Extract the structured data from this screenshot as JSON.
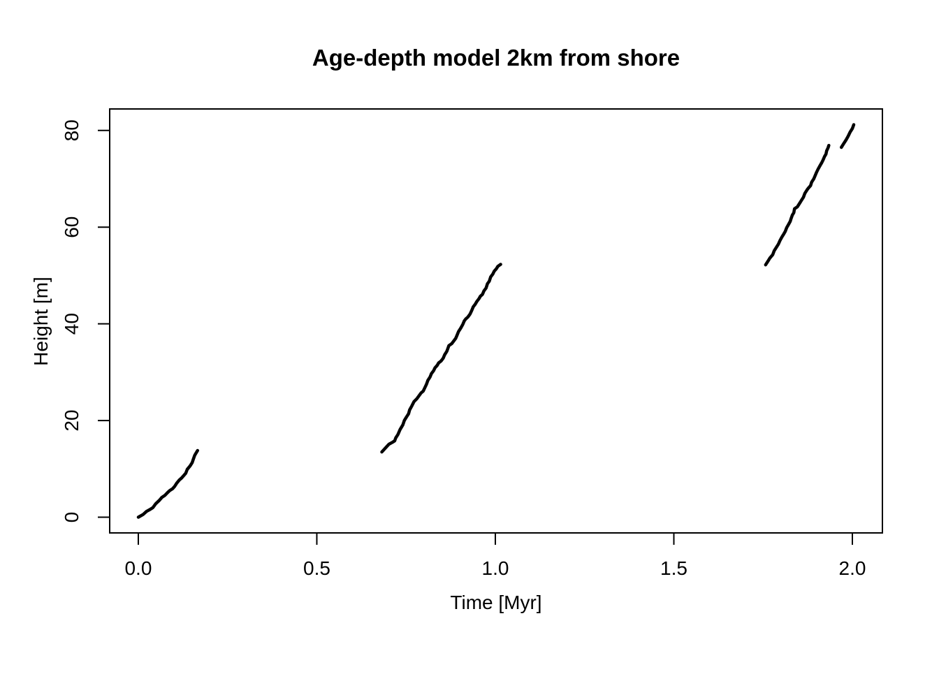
{
  "chart_data": {
    "type": "line",
    "title": "Age-depth model 2km from shore",
    "xlabel": "Time [Myr]",
    "ylabel": "Height [m]",
    "xlim": [
      0,
      2.004
    ],
    "ylim": [
      0,
      81.2
    ],
    "x_ticks": [
      0.0,
      0.5,
      1.0,
      1.5,
      2.0
    ],
    "x_tick_labels": [
      "0.0",
      "0.5",
      "1.0",
      "1.5",
      "2.0"
    ],
    "y_ticks": [
      0,
      20,
      40,
      60,
      80
    ],
    "y_tick_labels": [
      "0",
      "20",
      "40",
      "60",
      "80"
    ],
    "grid": false,
    "legend": "none",
    "axis_expansion": 0.04,
    "colors": {
      "line": "#000000",
      "axis": "#000000",
      "text": "#000000",
      "background": "#ffffff"
    },
    "series": [
      {
        "name": "segment-1",
        "points": [
          [
            0.0,
            0.0
          ],
          [
            0.014,
            0.6
          ],
          [
            0.023,
            1.2
          ],
          [
            0.033,
            1.6
          ],
          [
            0.041,
            2.0
          ],
          [
            0.049,
            2.8
          ],
          [
            0.059,
            3.5
          ],
          [
            0.066,
            4.1
          ],
          [
            0.074,
            4.5
          ],
          [
            0.082,
            5.1
          ],
          [
            0.088,
            5.5
          ],
          [
            0.096,
            5.9
          ],
          [
            0.102,
            6.4
          ],
          [
            0.108,
            7.1
          ],
          [
            0.115,
            7.7
          ],
          [
            0.121,
            8.1
          ],
          [
            0.127,
            8.6
          ],
          [
            0.133,
            9.1
          ],
          [
            0.137,
            9.9
          ],
          [
            0.145,
            10.6
          ],
          [
            0.151,
            11.3
          ],
          [
            0.154,
            12.0
          ],
          [
            0.158,
            12.8
          ],
          [
            0.162,
            13.3
          ],
          [
            0.166,
            13.8
          ]
        ]
      },
      {
        "name": "segment-2",
        "points": [
          [
            0.682,
            13.5
          ],
          [
            0.692,
            14.3
          ],
          [
            0.702,
            15.1
          ],
          [
            0.712,
            15.5
          ],
          [
            0.718,
            15.8
          ],
          [
            0.721,
            16.4
          ],
          [
            0.727,
            17.1
          ],
          [
            0.733,
            18.1
          ],
          [
            0.741,
            19.1
          ],
          [
            0.745,
            20.0
          ],
          [
            0.751,
            20.7
          ],
          [
            0.757,
            21.4
          ],
          [
            0.76,
            22.2
          ],
          [
            0.766,
            23.0
          ],
          [
            0.772,
            23.9
          ],
          [
            0.78,
            24.5
          ],
          [
            0.786,
            25.1
          ],
          [
            0.792,
            25.7
          ],
          [
            0.798,
            26.1
          ],
          [
            0.802,
            26.7
          ],
          [
            0.807,
            27.5
          ],
          [
            0.811,
            28.3
          ],
          [
            0.817,
            29.0
          ],
          [
            0.821,
            29.7
          ],
          [
            0.827,
            30.3
          ],
          [
            0.831,
            30.9
          ],
          [
            0.837,
            31.4
          ],
          [
            0.841,
            31.9
          ],
          [
            0.848,
            32.3
          ],
          [
            0.854,
            32.9
          ],
          [
            0.858,
            33.6
          ],
          [
            0.864,
            34.3
          ],
          [
            0.868,
            35.1
          ],
          [
            0.87,
            35.5
          ],
          [
            0.878,
            35.9
          ],
          [
            0.884,
            36.5
          ],
          [
            0.889,
            37.0
          ],
          [
            0.893,
            37.7
          ],
          [
            0.897,
            38.4
          ],
          [
            0.903,
            39.1
          ],
          [
            0.909,
            39.9
          ],
          [
            0.913,
            40.6
          ],
          [
            0.917,
            41.0
          ],
          [
            0.923,
            41.4
          ],
          [
            0.929,
            42.0
          ],
          [
            0.934,
            42.8
          ],
          [
            0.938,
            43.5
          ],
          [
            0.944,
            44.1
          ],
          [
            0.948,
            44.6
          ],
          [
            0.954,
            45.2
          ],
          [
            0.958,
            45.7
          ],
          [
            0.964,
            46.1
          ],
          [
            0.968,
            46.8
          ],
          [
            0.974,
            47.4
          ],
          [
            0.978,
            48.3
          ],
          [
            0.983,
            48.8
          ],
          [
            0.987,
            49.7
          ],
          [
            0.993,
            50.3
          ],
          [
            0.997,
            50.9
          ],
          [
            1.003,
            51.4
          ],
          [
            1.007,
            51.9
          ],
          [
            1.013,
            52.2
          ],
          [
            1.015,
            52.3
          ]
        ]
      },
      {
        "name": "segment-3",
        "points": [
          [
            1.757,
            52.2
          ],
          [
            1.763,
            52.9
          ],
          [
            1.769,
            53.6
          ],
          [
            1.777,
            54.3
          ],
          [
            1.781,
            55.1
          ],
          [
            1.787,
            55.8
          ],
          [
            1.793,
            56.5
          ],
          [
            1.797,
            57.2
          ],
          [
            1.803,
            58.0
          ],
          [
            1.808,
            58.6
          ],
          [
            1.812,
            59.1
          ],
          [
            1.816,
            59.9
          ],
          [
            1.82,
            60.4
          ],
          [
            1.826,
            61.2
          ],
          [
            1.828,
            61.7
          ],
          [
            1.832,
            62.5
          ],
          [
            1.836,
            63.0
          ],
          [
            1.838,
            63.8
          ],
          [
            1.846,
            64.2
          ],
          [
            1.851,
            64.8
          ],
          [
            1.857,
            65.5
          ],
          [
            1.863,
            66.2
          ],
          [
            1.867,
            67.0
          ],
          [
            1.873,
            67.7
          ],
          [
            1.877,
            68.1
          ],
          [
            1.883,
            68.6
          ],
          [
            1.886,
            69.3
          ],
          [
            1.892,
            70.0
          ],
          [
            1.896,
            70.7
          ],
          [
            1.9,
            71.4
          ],
          [
            1.904,
            72.0
          ],
          [
            1.91,
            72.8
          ],
          [
            1.914,
            73.3
          ],
          [
            1.918,
            73.9
          ],
          [
            1.922,
            74.6
          ],
          [
            1.926,
            75.1
          ],
          [
            1.928,
            75.8
          ],
          [
            1.932,
            76.4
          ],
          [
            1.934,
            76.9
          ]
        ]
      },
      {
        "name": "segment-4",
        "points": [
          [
            1.969,
            76.5
          ],
          [
            1.975,
            77.2
          ],
          [
            1.982,
            78.0
          ],
          [
            1.988,
            78.8
          ],
          [
            1.994,
            79.7
          ],
          [
            2.0,
            80.4
          ],
          [
            2.004,
            81.2
          ]
        ]
      }
    ]
  }
}
